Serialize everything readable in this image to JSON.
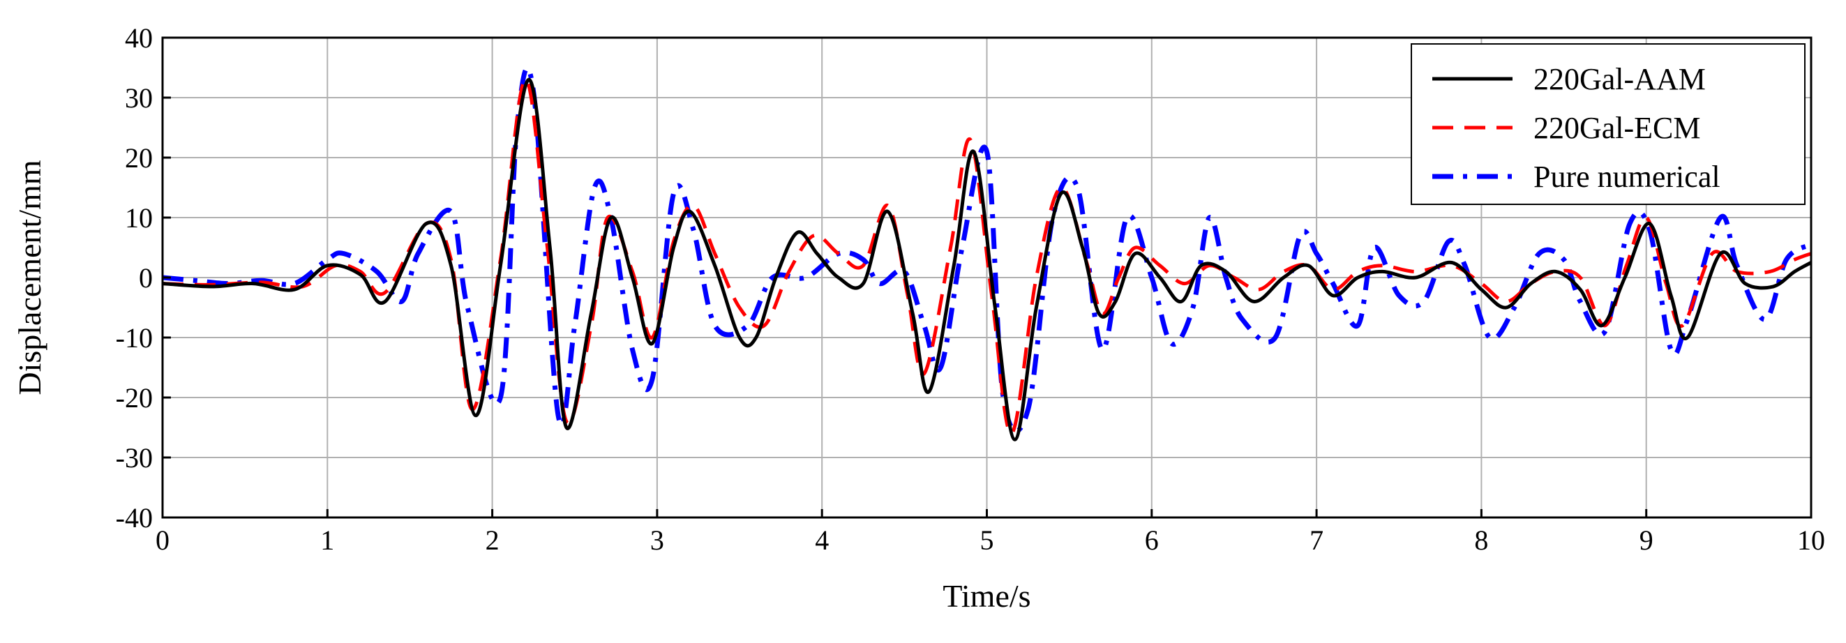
{
  "chart_data": {
    "type": "line",
    "title": "",
    "xlabel": "Time/s",
    "ylabel": "Displacement/mm",
    "xlim": [
      0,
      10
    ],
    "ylim": [
      -40,
      40
    ],
    "xticks": [
      0,
      1,
      2,
      3,
      4,
      5,
      6,
      7,
      8,
      9,
      10
    ],
    "yticks": [
      40,
      30,
      20,
      10,
      0,
      -10,
      -20,
      -30,
      -40
    ],
    "xtick_labels": [
      "0",
      "1",
      "2",
      "3",
      "4",
      "5",
      "6",
      "7",
      "8",
      "9",
      "10"
    ],
    "ytick_labels": [
      "40",
      "30",
      "20",
      "10",
      "0",
      "-10",
      "-20",
      "-30",
      "-40"
    ],
    "grid": true,
    "legend_position": "top-right",
    "series": [
      {
        "name": "220Gal-AAM",
        "color": "#000000",
        "style": "solid",
        "x": [
          0,
          0.3,
          0.55,
          0.8,
          1.0,
          1.2,
          1.35,
          1.6,
          1.75,
          1.9,
          2.05,
          2.22,
          2.35,
          2.45,
          2.6,
          2.72,
          2.85,
          2.97,
          3.1,
          3.2,
          3.35,
          3.5,
          3.6,
          3.72,
          3.85,
          3.97,
          4.1,
          4.25,
          4.4,
          4.55,
          4.65,
          4.8,
          4.92,
          5.05,
          5.17,
          5.3,
          5.45,
          5.58,
          5.68,
          5.78,
          5.9,
          6.05,
          6.18,
          6.3,
          6.45,
          6.62,
          6.8,
          6.95,
          7.1,
          7.25,
          7.4,
          7.6,
          7.82,
          8.0,
          8.15,
          8.3,
          8.45,
          8.6,
          8.73,
          8.87,
          9.02,
          9.15,
          9.25,
          9.45,
          9.6,
          9.77,
          9.9,
          10.0
        ],
        "y": [
          -1,
          -1.5,
          -1,
          -2,
          2,
          0.5,
          -4,
          9,
          2,
          -23,
          2,
          33,
          5,
          -25,
          -6,
          10,
          0,
          -11,
          5,
          11,
          2,
          -10,
          -10,
          0,
          7.5,
          4,
          0,
          -1,
          11,
          -6,
          -19,
          2,
          21,
          -5,
          -27,
          -5,
          14,
          5,
          -6,
          -4,
          4,
          0,
          -4,
          2,
          1,
          -4,
          0,
          2,
          -3,
          0,
          1,
          0,
          2.5,
          -2,
          -5,
          -1,
          1,
          -2,
          -8,
          0,
          9,
          -3,
          -10,
          4,
          -1,
          -1.5,
          1,
          2.5
        ]
      },
      {
        "name": "220Gal-ECM",
        "color": "#ff0000",
        "style": "dashed",
        "x": [
          0,
          0.3,
          0.6,
          0.85,
          1.05,
          1.2,
          1.35,
          1.6,
          1.75,
          1.88,
          2.05,
          2.2,
          2.33,
          2.45,
          2.6,
          2.7,
          2.85,
          2.97,
          3.1,
          3.22,
          3.35,
          3.5,
          3.65,
          3.8,
          3.95,
          4.1,
          4.25,
          4.4,
          4.52,
          4.62,
          4.78,
          4.9,
          5.03,
          5.15,
          5.3,
          5.45,
          5.6,
          5.7,
          5.8,
          5.9,
          6.05,
          6.2,
          6.35,
          6.5,
          6.65,
          6.8,
          6.95,
          7.1,
          7.25,
          7.4,
          7.6,
          7.82,
          8.0,
          8.15,
          8.3,
          8.45,
          8.6,
          8.75,
          8.88,
          9.0,
          9.12,
          9.22,
          9.4,
          9.55,
          9.75,
          9.9,
          10.0
        ],
        "y": [
          -1,
          -1.2,
          -0.8,
          -1.5,
          2,
          1,
          -2.5,
          9,
          3,
          -22,
          3,
          33,
          6,
          -24,
          -8,
          10,
          1,
          -10,
          6,
          12,
          4,
          -5,
          -8,
          1,
          7,
          4,
          2,
          12,
          -3,
          -16,
          5,
          23,
          -3,
          -26,
          0,
          15,
          3,
          -6,
          0,
          5,
          2,
          -1,
          2,
          0,
          -2,
          1,
          2,
          -2,
          1,
          2,
          1,
          2,
          -1,
          -4,
          -1,
          1,
          0,
          -8,
          2,
          10,
          -1,
          -8,
          4,
          1,
          1,
          3,
          4
        ]
      },
      {
        "name": "Pure numerical",
        "color": "#0000ff",
        "style": "dashdot",
        "x": [
          0,
          0.2,
          0.4,
          0.6,
          0.8,
          1.0,
          1.1,
          1.3,
          1.45,
          1.55,
          1.75,
          1.85,
          2.05,
          2.15,
          2.25,
          2.4,
          2.5,
          2.62,
          2.72,
          2.85,
          2.97,
          3.1,
          3.22,
          3.35,
          3.55,
          3.7,
          3.9,
          4.1,
          4.25,
          4.35,
          4.5,
          4.62,
          4.72,
          4.85,
          5.0,
          5.1,
          5.25,
          5.4,
          5.55,
          5.7,
          5.85,
          6.0,
          6.12,
          6.25,
          6.35,
          6.45,
          6.55,
          6.75,
          6.9,
          7.0,
          7.1,
          7.25,
          7.35,
          7.5,
          7.65,
          7.8,
          7.9,
          8.05,
          8.2,
          8.35,
          8.5,
          8.6,
          8.75,
          8.9,
          9.02,
          9.15,
          9.25,
          9.45,
          9.55,
          9.72,
          9.85,
          10.0
        ],
        "y": [
          0,
          -0.5,
          -1,
          -0.5,
          -1,
          3,
          4,
          1,
          -4,
          4,
          11,
          -5,
          -20,
          25,
          31,
          -23,
          -8,
          15,
          10,
          -12,
          -17,
          14,
          8,
          -8,
          -8,
          0,
          0,
          4,
          3,
          -1,
          1,
          -8,
          -15,
          5,
          21,
          -20,
          -22,
          10,
          15,
          -12,
          10,
          0,
          -11,
          -5,
          10,
          0,
          -7,
          -10,
          7,
          4,
          -1,
          -8,
          5,
          -3,
          -4,
          6,
          2,
          -10,
          -5,
          4,
          3,
          -4,
          -9,
          9,
          8,
          -12,
          -7,
          10,
          2,
          -7,
          3,
          5.5
        ]
      }
    ]
  }
}
